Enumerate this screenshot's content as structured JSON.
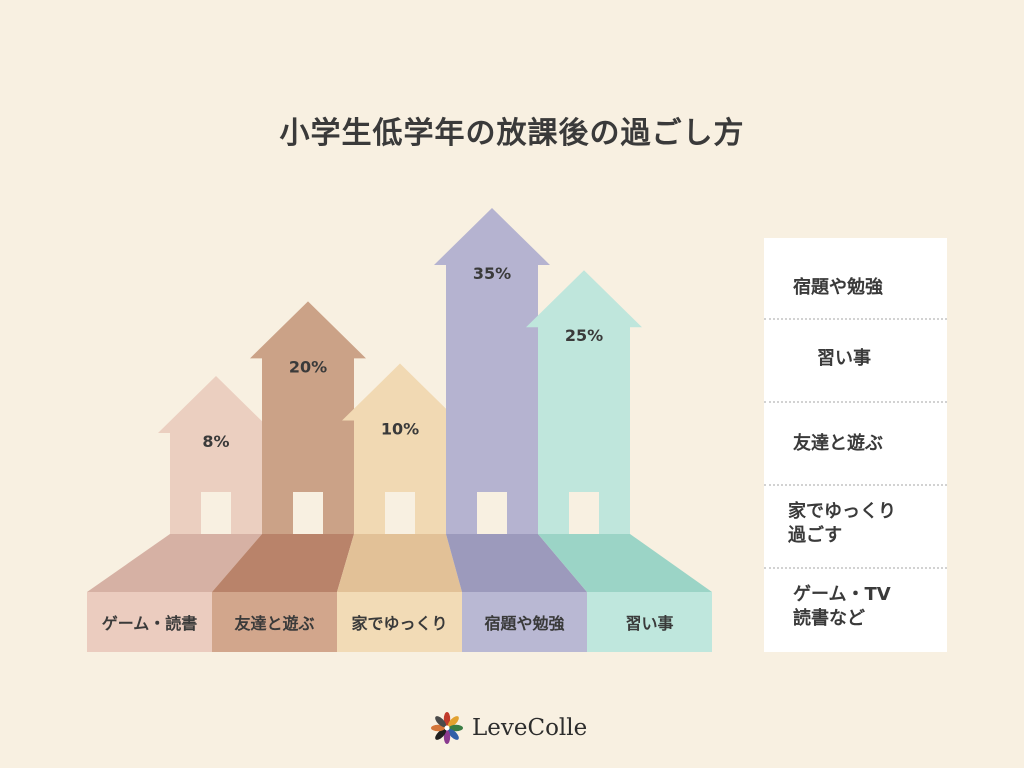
{
  "title": "小学生低学年の放課後の過ごし方",
  "chart_data": {
    "type": "bar",
    "title": "小学生低学年の放課後の過ごし方",
    "categories": [
      "ゲーム・読書",
      "友達と遊ぶ",
      "家でゆっくり",
      "宿題や勉強",
      "習い事"
    ],
    "values": [
      8,
      20,
      10,
      35,
      25
    ],
    "value_labels": [
      "8%",
      "20%",
      "10%",
      "35%",
      "25%"
    ],
    "ylim": [
      0,
      35
    ],
    "colors": {
      "house_body": [
        "#ebcfc0",
        "#cba287",
        "#f1d9b3",
        "#b5b3d0",
        "#bfe6dc"
      ],
      "floor": [
        "#d6b1a4",
        "#b9836a",
        "#e2c197",
        "#9c9abc",
        "#9bd4c6"
      ],
      "label_box": [
        "#ebccbf",
        "#d2a68c",
        "#f2dbb6",
        "#b9b8d3",
        "#bfe7dd"
      ],
      "door": "#f8f0e1"
    }
  },
  "legend": {
    "items": [
      "宿題や勉強",
      "習い事",
      "友達と遊ぶ",
      "家でゆっくり\n過ごす",
      "ゲーム・TV\n読書など"
    ]
  },
  "brand": {
    "name": "LeveColle"
  }
}
